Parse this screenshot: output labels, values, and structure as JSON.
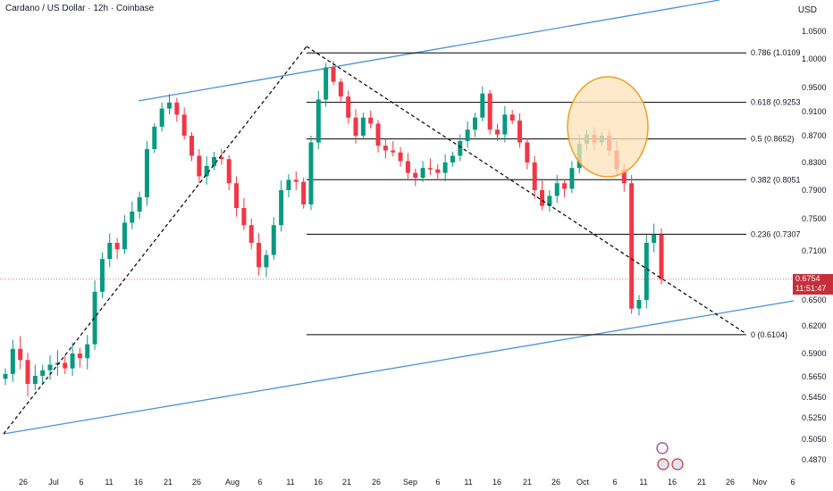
{
  "header": {
    "title": "Cardano / US Dollar · 12h · Coinbase",
    "currency": "USD"
  },
  "price_box": {
    "value": "0.6754",
    "countdown": "11:51:47",
    "color": "#c62f3a"
  },
  "colors": {
    "bull": "#089981",
    "bear": "#f23645",
    "trend": "#4a90d9",
    "fib": "#000000",
    "highlight_fill": "#fde3b8",
    "highlight_stroke": "#f0a020"
  },
  "chart_data": {
    "type": "candlestick",
    "y_range": [
      0.48,
      1.06
    ],
    "y_ticks": [
      "1.0500",
      "1.0000",
      "0.9500",
      "0.9100",
      "0.8700",
      "0.8300",
      "0.7900",
      "0.7500",
      "0.7100",
      "0.6500",
      "0.6200",
      "0.5900",
      "0.5650",
      "0.5450",
      "0.5250",
      "0.5050",
      "0.4870"
    ],
    "x_ticks": [
      "26",
      "Jul",
      "6",
      "11",
      "16",
      "21",
      "26",
      "Aug",
      "6",
      "11",
      "16",
      "21",
      "26",
      "Sep",
      "6",
      "11",
      "16",
      "21",
      "26",
      "Oct",
      "6",
      "11",
      "16",
      "21",
      "26",
      "Nov",
      "6"
    ],
    "fib_levels": [
      {
        "label": "0.786 (1.0109",
        "value": 1.0109
      },
      {
        "label": "0.618 (0.9253",
        "value": 0.9253
      },
      {
        "label": "0.5 (0.8652)",
        "value": 0.8652
      },
      {
        "label": "0.382 (0.8051",
        "value": 0.8051
      },
      {
        "label": "0.236 (0.7307",
        "value": 0.7307
      },
      {
        "label": "0 (0.6104)",
        "value": 0.6104
      }
    ],
    "last_price": 0.6754,
    "candles_close_path": [
      0.568,
      0.595,
      0.583,
      0.558,
      0.566,
      0.572,
      0.578,
      0.58,
      0.574,
      0.59,
      0.585,
      0.6,
      0.66,
      0.7,
      0.72,
      0.712,
      0.745,
      0.76,
      0.78,
      0.85,
      0.885,
      0.915,
      0.925,
      0.905,
      0.87,
      0.84,
      0.81,
      0.825,
      0.838,
      0.835,
      0.8,
      0.765,
      0.742,
      0.72,
      0.69,
      0.705,
      0.742,
      0.79,
      0.805,
      0.802,
      0.77,
      0.86,
      0.93,
      0.985,
      0.96,
      0.935,
      0.9,
      0.87,
      0.9,
      0.89,
      0.855,
      0.848,
      0.845,
      0.832,
      0.815,
      0.808,
      0.822,
      0.82,
      0.815,
      0.83,
      0.84,
      0.862,
      0.88,
      0.9,
      0.94,
      0.88,
      0.872,
      0.905,
      0.895,
      0.86,
      0.83,
      0.79,
      0.768,
      0.782,
      0.8,
      0.792,
      0.822,
      0.858,
      0.872,
      0.86,
      0.87,
      0.848,
      0.82,
      0.8,
      0.64,
      0.65,
      0.72,
      0.73,
      0.675
    ]
  }
}
